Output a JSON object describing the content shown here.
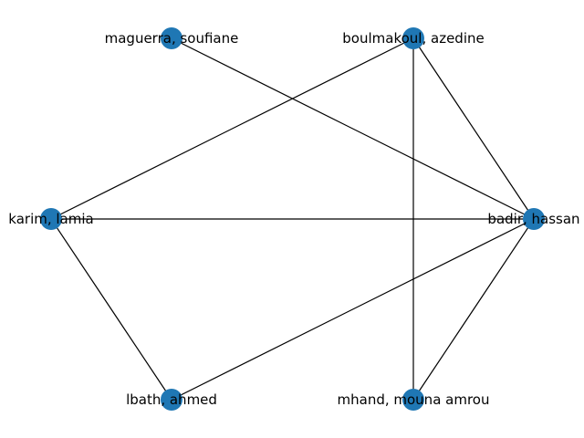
{
  "graph": {
    "node_color": "#1f77b4",
    "edge_color": "#000000",
    "nodes": [
      {
        "id": "maguerra",
        "label": "maguerra, soufiane"
      },
      {
        "id": "boulmakoul",
        "label": "boulmakoul, azedine"
      },
      {
        "id": "karim",
        "label": "karim, lamia"
      },
      {
        "id": "badir",
        "label": "badir, hassan"
      },
      {
        "id": "lbath",
        "label": "lbath, ahmed"
      },
      {
        "id": "mhand",
        "label": "mhand, mouna amrou"
      }
    ],
    "edges": [
      {
        "source": "maguerra",
        "target": "badir"
      },
      {
        "source": "boulmakoul",
        "target": "karim"
      },
      {
        "source": "boulmakoul",
        "target": "badir"
      },
      {
        "source": "boulmakoul",
        "target": "mhand"
      },
      {
        "source": "karim",
        "target": "badir"
      },
      {
        "source": "karim",
        "target": "lbath"
      },
      {
        "source": "badir",
        "target": "lbath"
      },
      {
        "source": "badir",
        "target": "mhand"
      }
    ]
  }
}
